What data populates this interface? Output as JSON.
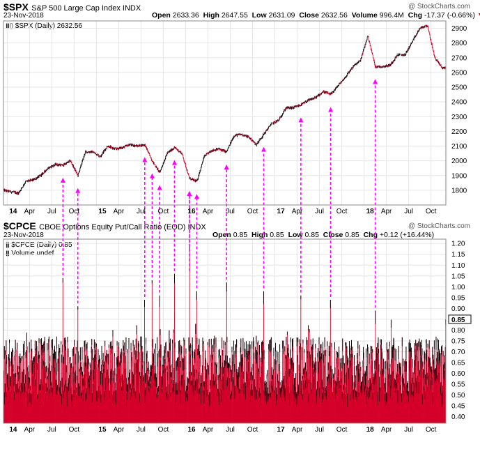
{
  "top": {
    "symbol": "$SPX",
    "name": "S&P 500 Large Cap Index INDX",
    "date": "23-Nov-2018",
    "stats": {
      "open_label": "Open",
      "open": "2633.36",
      "high_label": "High",
      "high": "2647.55",
      "low_label": "Low",
      "low": "2631.09",
      "close_label": "Close",
      "close": "2632.56",
      "volume_label": "Volume",
      "volume": "996.4M",
      "chg_label": "Chg",
      "chg": "-17.37 (-0.66%)"
    },
    "credit": "@ StockCharts.com",
    "legend": "$SPX (Daily) 2632.56"
  },
  "bottom": {
    "symbol": "$CPCE",
    "name": "CBOE Options Equity Put/Call Ratio (EOD) INDX",
    "date": "23-Nov-2018",
    "stats": {
      "open_label": "Open",
      "open": "0.85",
      "high_label": "High",
      "high": "0.85",
      "low_label": "Low",
      "low": "0.85",
      "close_label": "Close",
      "close": "0.85",
      "chg_label": "Chg",
      "chg": "+0.12 (+16.44%)"
    },
    "credit": "@ StockCharts.com",
    "legend": "$CPCE (Daily) 0.85",
    "legend2": "Volume undef"
  },
  "chart_data": [
    {
      "type": "line",
      "title": "$SPX S&P 500 Large Cap Index INDX",
      "x_ticks": [
        "14",
        "Apr",
        "Jul",
        "Oct",
        "15",
        "Apr",
        "Jul",
        "Oct",
        "16",
        "Apr",
        "Jul",
        "Oct",
        "17",
        "Apr",
        "Jul",
        "Oct",
        "18",
        "Apr",
        "Jul",
        "Oct"
      ],
      "y_ticks": [
        1800,
        1900,
        2000,
        2100,
        2200,
        2300,
        2400,
        2500,
        2600,
        2700,
        2800,
        2900
      ],
      "ylim": [
        1700,
        2950
      ],
      "last_value": 2632.56,
      "series": [
        {
          "x": [
            "2013-12",
            "2014-01",
            "2014-02",
            "2014-03",
            "2014-04",
            "2014-05",
            "2014-06",
            "2014-07",
            "2014-08",
            "2014-09",
            "2014-10",
            "2014-11",
            "2014-12",
            "2015-01",
            "2015-02",
            "2015-03",
            "2015-04",
            "2015-05",
            "2015-06",
            "2015-07",
            "2015-08",
            "2015-09",
            "2015-10",
            "2015-11",
            "2015-12",
            "2016-01",
            "2016-02",
            "2016-03",
            "2016-04",
            "2016-05",
            "2016-06",
            "2016-07",
            "2016-08",
            "2016-09",
            "2016-10",
            "2016-11",
            "2016-12",
            "2017-01",
            "2017-02",
            "2017-03",
            "2017-04",
            "2017-05",
            "2017-06",
            "2017-07",
            "2017-08",
            "2017-09",
            "2017-10",
            "2017-11",
            "2017-12",
            "2018-01",
            "2018-02",
            "2018-03",
            "2018-04",
            "2018-05",
            "2018-06",
            "2018-07",
            "2018-08",
            "2018-09",
            "2018-10",
            "2018-11"
          ],
          "values": [
            1800,
            1790,
            1780,
            1860,
            1870,
            1900,
            1950,
            1975,
            1970,
            2000,
            1900,
            2060,
            2060,
            2030,
            2100,
            2080,
            2090,
            2110,
            2100,
            2110,
            2000,
            1920,
            2050,
            2090,
            2050,
            1880,
            1860,
            2030,
            2070,
            2080,
            2060,
            2170,
            2180,
            2160,
            2110,
            2180,
            2250,
            2275,
            2360,
            2360,
            2380,
            2410,
            2430,
            2470,
            2450,
            2510,
            2570,
            2640,
            2680,
            2850,
            2640,
            2640,
            2650,
            2720,
            2720,
            2810,
            2900,
            2920,
            2700,
            2632
          ]
        }
      ]
    },
    {
      "type": "bar",
      "title": "$CPCE CBOE Options Equity Put/Call Ratio (EOD) INDX",
      "x_ticks": [
        "14",
        "Apr",
        "Jul",
        "Oct",
        "15",
        "Apr",
        "Jul",
        "Oct",
        "16",
        "Apr",
        "Jul",
        "Oct",
        "17",
        "Apr",
        "Jul",
        "Oct",
        "18",
        "Apr",
        "Jul",
        "Oct"
      ],
      "y_ticks": [
        0.4,
        0.45,
        0.5,
        0.55,
        0.6,
        0.65,
        0.7,
        0.75,
        0.8,
        0.85,
        0.9,
        0.95,
        1.0,
        1.05,
        1.1,
        1.15,
        1.2
      ],
      "ylim": [
        0.37,
        1.22
      ],
      "last_value": 0.85,
      "spikes": [
        {
          "date": "2014-08",
          "value": 1.04
        },
        {
          "date": "2014-10",
          "value": 0.91
        },
        {
          "date": "2015-07",
          "value": 0.94
        },
        {
          "date": "2015-08",
          "value": 1.03
        },
        {
          "date": "2015-09",
          "value": 0.96
        },
        {
          "date": "2015-11",
          "value": 1.06
        },
        {
          "date": "2016-01",
          "value": 1.19
        },
        {
          "date": "2016-01",
          "value": 1.06
        },
        {
          "date": "2016-02",
          "value": 0.98
        },
        {
          "date": "2016-06",
          "value": 1.02
        },
        {
          "date": "2016-11",
          "value": 0.98
        },
        {
          "date": "2017-04",
          "value": 0.96
        },
        {
          "date": "2017-08",
          "value": 0.94
        },
        {
          "date": "2018-02",
          "value": 0.89
        }
      ]
    }
  ],
  "colors": {
    "down": "#d4002a",
    "up": "#000000",
    "arrow": "#ff00ff",
    "grid": "#e6e6e6",
    "chg": "#cc0000"
  }
}
